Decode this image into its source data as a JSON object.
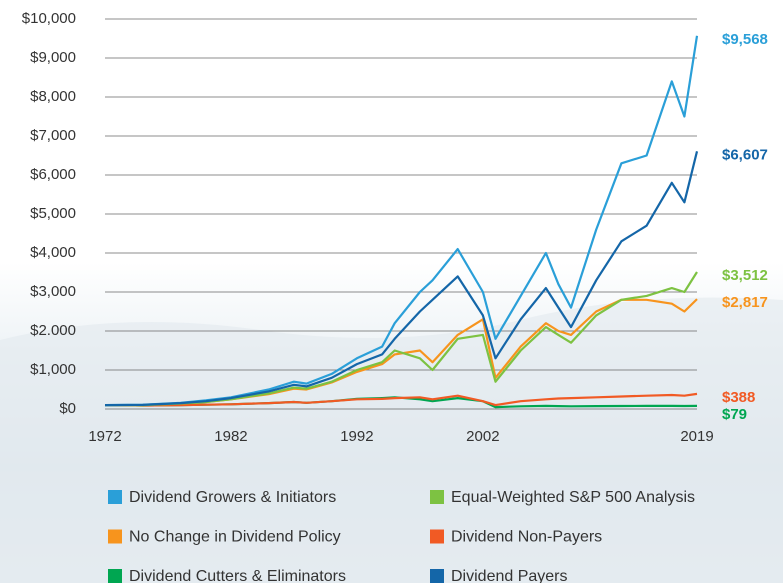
{
  "chart_data": {
    "type": "line",
    "x": [
      1972,
      1975,
      1978,
      1980,
      1982,
      1985,
      1987,
      1988,
      1990,
      1992,
      1994,
      1995,
      1997,
      1998,
      2000,
      2002,
      2003,
      2005,
      2007,
      2008,
      2009,
      2011,
      2013,
      2015,
      2017,
      2018,
      2019
    ],
    "xlim": [
      1972,
      2019
    ],
    "xticks": [
      1972,
      1982,
      1992,
      2002,
      2019
    ],
    "ylim": [
      0,
      10000
    ],
    "yticks": [
      {
        "value": 0,
        "label": "$0"
      },
      {
        "value": 1000,
        "label": "$1,000"
      },
      {
        "value": 2000,
        "label": "$2.000"
      },
      {
        "value": 3000,
        "label": "$3,000"
      },
      {
        "value": 4000,
        "label": "$4,000"
      },
      {
        "value": 5000,
        "label": "$5,000"
      },
      {
        "value": 6000,
        "label": "$6,000"
      },
      {
        "value": 7000,
        "label": "$7,000"
      },
      {
        "value": 8000,
        "label": "$8,000"
      },
      {
        "value": 9000,
        "label": "$9,000"
      },
      {
        "value": 10000,
        "label": "$10,000"
      }
    ],
    "grid": true,
    "series": [
      {
        "name": "Dividend Growers & Initiators",
        "color": "#2a9fd8",
        "end_label": "$9,568",
        "values": [
          100,
          110,
          160,
          220,
          300,
          500,
          700,
          650,
          900,
          1300,
          1600,
          2200,
          3000,
          3300,
          4100,
          3000,
          1800,
          2900,
          4000,
          3200,
          2600,
          4600,
          6300,
          6500,
          8400,
          7500,
          9568
        ]
      },
      {
        "name": "Equal-Weighted S&P 500 Analysis",
        "color": "#7dc242",
        "end_label": "$3,512",
        "values": [
          100,
          100,
          140,
          180,
          250,
          400,
          550,
          520,
          700,
          1000,
          1200,
          1500,
          1300,
          1000,
          1800,
          1900,
          700,
          1500,
          2100,
          1900,
          1700,
          2400,
          2800,
          2900,
          3100,
          3000,
          3512
        ]
      },
      {
        "name": "No Change in Dividend Policy",
        "color": "#f7941d",
        "end_label": "$2,817",
        "values": [
          100,
          100,
          140,
          180,
          250,
          380,
          520,
          500,
          680,
          950,
          1150,
          1400,
          1500,
          1200,
          1900,
          2300,
          800,
          1600,
          2200,
          2000,
          1900,
          2500,
          2800,
          2800,
          2700,
          2500,
          2817
        ]
      },
      {
        "name": "Dividend Non-Payers",
        "color": "#f15a24",
        "end_label": "$388",
        "values": [
          100,
          90,
          100,
          110,
          120,
          150,
          180,
          160,
          200,
          250,
          260,
          280,
          300,
          250,
          340,
          200,
          100,
          200,
          250,
          270,
          280,
          300,
          320,
          340,
          360,
          340,
          388
        ]
      },
      {
        "name": "Dividend Cutters & Eliminators",
        "color": "#00a651",
        "end_label": "$79",
        "values": [
          100,
          90,
          100,
          110,
          120,
          150,
          180,
          160,
          200,
          260,
          280,
          300,
          250,
          200,
          280,
          200,
          50,
          70,
          80,
          75,
          70,
          75,
          78,
          80,
          80,
          78,
          79
        ]
      },
      {
        "name": "Dividend Payers",
        "color": "#1466a8",
        "end_label": "$6,607",
        "values": [
          100,
          105,
          150,
          200,
          280,
          450,
          620,
          580,
          800,
          1150,
          1400,
          1800,
          2500,
          2800,
          3400,
          2400,
          1300,
          2300,
          3100,
          2600,
          2100,
          3300,
          4300,
          4700,
          5800,
          5300,
          6607
        ]
      }
    ]
  }
}
